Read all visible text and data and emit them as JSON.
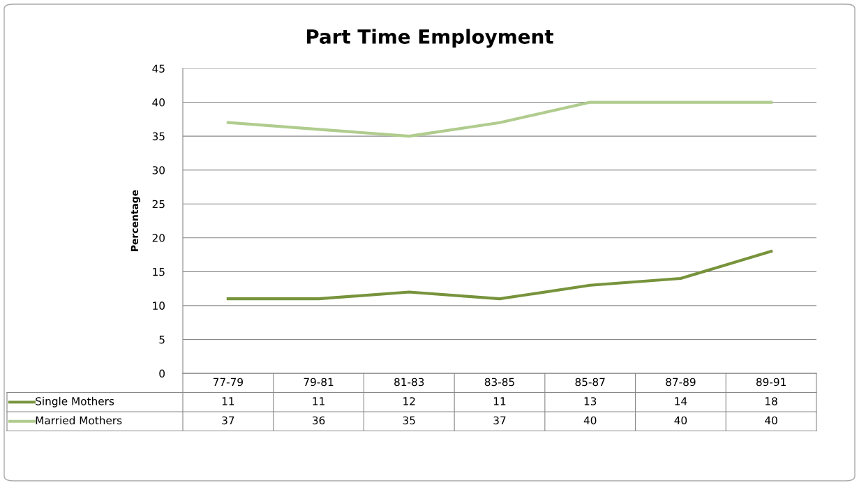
{
  "chart_data": {
    "type": "line",
    "title": "Part Time Employment",
    "ylabel": "Percentage",
    "categories": [
      "77-79",
      "79-81",
      "81-83",
      "83-85",
      "85-87",
      "87-89",
      "89-91"
    ],
    "series": [
      {
        "name": "Single Mothers",
        "color": "#77933c",
        "values": [
          11,
          11,
          12,
          11,
          13,
          14,
          18
        ]
      },
      {
        "name": "Married Mothers",
        "color": "#b0cc8e",
        "values": [
          37,
          36,
          35,
          37,
          40,
          40,
          40
        ]
      }
    ],
    "ylim": [
      0,
      45
    ],
    "yticks": [
      0,
      5,
      10,
      15,
      20,
      25,
      30,
      35,
      40,
      45
    ],
    "grid": "y",
    "legend": "bottom",
    "data_labels": true,
    "marker": "none",
    "line_style": "solid"
  }
}
